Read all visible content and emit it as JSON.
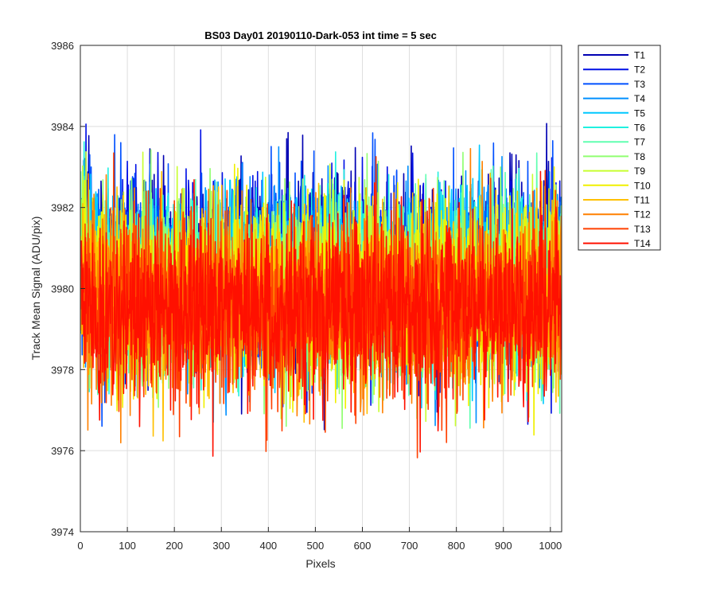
{
  "chart_data": {
    "type": "line",
    "title": "BS03 Day01 20190110-Dark-053 int time = 5 sec",
    "xlabel": "Pixels",
    "ylabel": "Track Mean Signal (ADU/pix)",
    "xlim": [
      0,
      1024
    ],
    "ylim": [
      3974,
      3986
    ],
    "xticks": [
      0,
      100,
      200,
      300,
      400,
      500,
      600,
      700,
      800,
      900,
      1000
    ],
    "yticks": [
      3974,
      3976,
      3978,
      3980,
      3982,
      3984,
      3986
    ],
    "grid": true,
    "legend_position": "outside-top-right",
    "n_points": 1024,
    "series": [
      {
        "name": "T1",
        "color": "#0000b3",
        "mean": 3980.6,
        "spread": 1.1
      },
      {
        "name": "T2",
        "color": "#0010e6",
        "mean": 3980.5,
        "spread": 1.1
      },
      {
        "name": "T3",
        "color": "#0050ff",
        "mean": 3980.4,
        "spread": 1.1
      },
      {
        "name": "T4",
        "color": "#0090ff",
        "mean": 3980.3,
        "spread": 1.1
      },
      {
        "name": "T5",
        "color": "#00c8ff",
        "mean": 3980.2,
        "spread": 1.1
      },
      {
        "name": "T6",
        "color": "#20f0e0",
        "mean": 3980.2,
        "spread": 1.1
      },
      {
        "name": "T7",
        "color": "#60ffb0",
        "mean": 3980.1,
        "spread": 1.1
      },
      {
        "name": "T8",
        "color": "#90ff70",
        "mean": 3980.0,
        "spread": 1.1
      },
      {
        "name": "T9",
        "color": "#c8ff30",
        "mean": 3980.0,
        "spread": 1.1
      },
      {
        "name": "T10",
        "color": "#f0f000",
        "mean": 3979.9,
        "spread": 1.1
      },
      {
        "name": "T11",
        "color": "#ffc000",
        "mean": 3979.8,
        "spread": 1.1
      },
      {
        "name": "T12",
        "color": "#ff8000",
        "mean": 3979.7,
        "spread": 1.1
      },
      {
        "name": "T13",
        "color": "#ff4000",
        "mean": 3979.6,
        "spread": 1.1
      },
      {
        "name": "T14",
        "color": "#ff1000",
        "mean": 3979.5,
        "spread": 1.1
      }
    ]
  }
}
